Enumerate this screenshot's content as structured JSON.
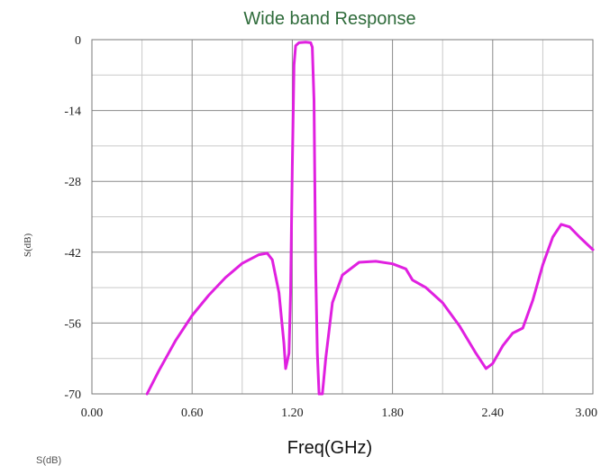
{
  "chart_data": {
    "type": "line",
    "title": "Wide band Response",
    "xlabel": "Freq(GHz)",
    "ylabel": "S(dB)",
    "xlim": [
      0.0,
      3.0
    ],
    "ylim": [
      -70,
      0
    ],
    "x_ticks": [
      "0.00",
      "0.60",
      "1.20",
      "1.80",
      "2.40",
      "3.00"
    ],
    "y_ticks": [
      "0",
      "-14",
      "-28",
      "-42",
      "-56",
      "-70"
    ],
    "grid": true,
    "series": [
      {
        "color": "#e020e0",
        "points": [
          [
            0.33,
            -70
          ],
          [
            0.4,
            -65.5
          ],
          [
            0.5,
            -59.5
          ],
          [
            0.6,
            -54.5
          ],
          [
            0.7,
            -50.5
          ],
          [
            0.8,
            -47
          ],
          [
            0.9,
            -44.2
          ],
          [
            1.0,
            -42.5
          ],
          [
            1.05,
            -42.2
          ],
          [
            1.08,
            -43.5
          ],
          [
            1.12,
            -50
          ],
          [
            1.15,
            -60
          ],
          [
            1.16,
            -65
          ],
          [
            1.18,
            -62
          ],
          [
            1.19,
            -50
          ],
          [
            1.2,
            -25
          ],
          [
            1.21,
            -5
          ],
          [
            1.22,
            -1.2
          ],
          [
            1.24,
            -0.6
          ],
          [
            1.28,
            -0.5
          ],
          [
            1.31,
            -0.6
          ],
          [
            1.32,
            -1.5
          ],
          [
            1.33,
            -12
          ],
          [
            1.34,
            -45
          ],
          [
            1.35,
            -62
          ],
          [
            1.36,
            -70
          ],
          [
            1.38,
            -70
          ],
          [
            1.4,
            -63
          ],
          [
            1.44,
            -52
          ],
          [
            1.5,
            -46.5
          ],
          [
            1.6,
            -44
          ],
          [
            1.7,
            -43.8
          ],
          [
            1.8,
            -44.3
          ],
          [
            1.88,
            -45.3
          ],
          [
            1.92,
            -47.5
          ],
          [
            2.0,
            -49
          ],
          [
            2.1,
            -52
          ],
          [
            2.2,
            -56.5
          ],
          [
            2.3,
            -62
          ],
          [
            2.36,
            -65
          ],
          [
            2.4,
            -64
          ],
          [
            2.46,
            -60.5
          ],
          [
            2.52,
            -58
          ],
          [
            2.58,
            -57
          ],
          [
            2.64,
            -51.5
          ],
          [
            2.7,
            -44.5
          ],
          [
            2.76,
            -39
          ],
          [
            2.81,
            -36.5
          ],
          [
            2.86,
            -37
          ],
          [
            2.92,
            -39
          ],
          [
            3.0,
            -41.5
          ]
        ]
      }
    ]
  },
  "footer_text": "S(dB)"
}
